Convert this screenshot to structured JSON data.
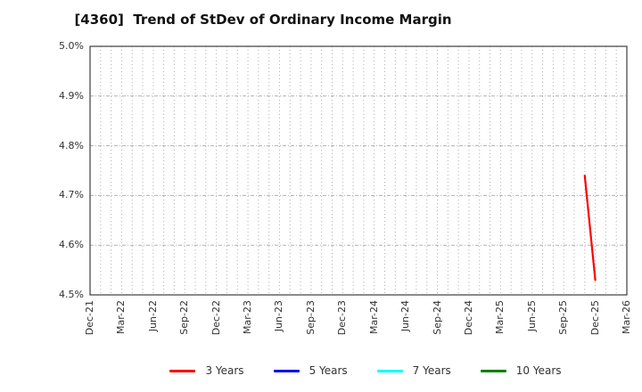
{
  "figure": {
    "background": "#ffffff"
  },
  "chart_data": {
    "type": "line",
    "title": "[4360]  Trend of StDev of Ordinary Income Margin",
    "x_categories": [
      "Dec-21",
      "Mar-22",
      "Jun-22",
      "Sep-22",
      "Dec-22",
      "Mar-23",
      "Jun-23",
      "Sep-23",
      "Dec-23",
      "Mar-24",
      "Jun-24",
      "Sep-24",
      "Dec-24",
      "Mar-25",
      "Jun-25",
      "Sep-25",
      "Dec-25",
      "Mar-26"
    ],
    "ylim": [
      4.5,
      5.0
    ],
    "ytick_step": 0.1,
    "ytick_labels": [
      "4.5%",
      "4.6%",
      "4.7%",
      "4.8%",
      "4.9%",
      "5.0%"
    ],
    "grid": {
      "vertical": "monthly dotted",
      "horizontal": "dashed at each 0.1%"
    },
    "legend_position": "bottom",
    "colors": {
      "grid": "#b0b0b0",
      "axis_border": "#3c3c3c",
      "text": "#333333",
      "title_text": "#111111"
    },
    "series": [
      {
        "name": "3 Years",
        "color": "#ff0000",
        "points": [
          {
            "x": "Nov-25",
            "y": 4.74
          },
          {
            "x": "Dec-25",
            "y": 4.53
          }
        ]
      },
      {
        "name": "5 Years",
        "color": "#0000ff",
        "points": []
      },
      {
        "name": "7 Years",
        "color": "#00ffff",
        "points": []
      },
      {
        "name": "10 Years",
        "color": "#008000",
        "points": []
      }
    ]
  }
}
